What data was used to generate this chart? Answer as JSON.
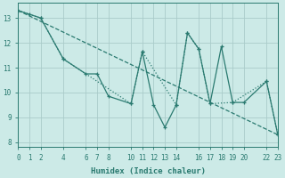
{
  "xlabel": "Humidex (Indice chaleur)",
  "bg_color": "#cceae7",
  "grid_color": "#aaccca",
  "line_color": "#2a7a70",
  "line1": {
    "x": [
      0,
      1,
      2,
      4,
      6,
      7,
      8,
      10,
      11,
      12,
      13,
      14,
      15,
      16,
      17,
      18,
      19,
      20,
      22,
      23
    ],
    "y": [
      13.3,
      13.15,
      13.0,
      11.35,
      10.75,
      10.75,
      9.85,
      9.55,
      11.65,
      9.5,
      8.6,
      9.5,
      12.4,
      11.75,
      9.55,
      11.85,
      9.6,
      9.6,
      10.45,
      8.3
    ]
  },
  "line2": {
    "x": [
      0,
      2,
      4,
      10,
      11,
      14,
      15,
      16,
      17,
      19,
      22,
      23
    ],
    "y": [
      13.3,
      13.0,
      11.35,
      9.55,
      11.65,
      9.5,
      12.4,
      11.75,
      9.55,
      9.6,
      10.45,
      8.3
    ]
  },
  "line3": {
    "x": [
      0,
      23
    ],
    "y": [
      13.3,
      8.3
    ]
  },
  "xlim": [
    0,
    23
  ],
  "ylim": [
    7.8,
    13.6
  ],
  "xticks": [
    0,
    1,
    2,
    4,
    6,
    7,
    8,
    10,
    11,
    12,
    13,
    14,
    16,
    17,
    18,
    19,
    20,
    22,
    23
  ],
  "yticks": [
    8,
    9,
    10,
    11,
    12,
    13
  ],
  "tick_fontsize": 5.5,
  "label_fontsize": 6.5
}
